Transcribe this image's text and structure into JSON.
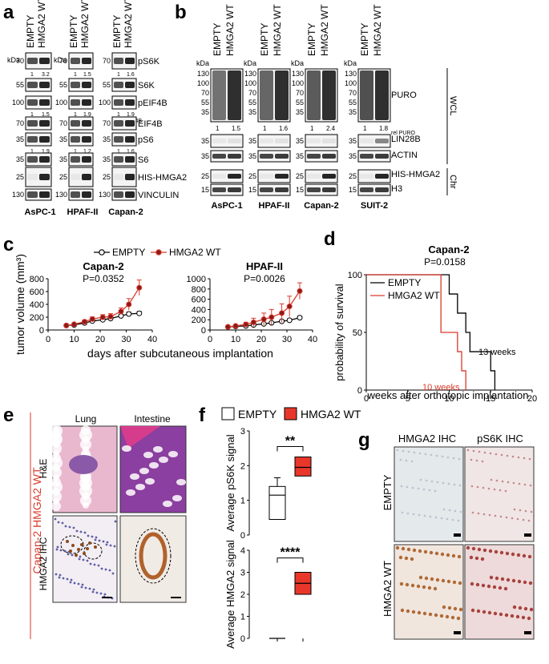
{
  "panels": {
    "a": "a",
    "b": "b",
    "c": "c",
    "d": "d",
    "e": "e",
    "f": "f",
    "g": "g"
  },
  "panel_a": {
    "columns": [
      "EMPTY",
      "HMGA2 WT"
    ],
    "kda_label": "kDa",
    "cell_lines": [
      "AsPC-1",
      "HPAF-II",
      "Capan-2"
    ],
    "rows": [
      {
        "label": "pS6K",
        "kda": "70",
        "kda2": "55",
        "quant": [
          [
            "1",
            "3.2"
          ],
          [
            "1",
            "1.5"
          ],
          [
            "1",
            "1.6"
          ]
        ],
        "rel": "rel pS6K"
      },
      {
        "label": "S6K",
        "kda": "55"
      },
      {
        "label": "pEIF4B",
        "kda": "100",
        "quant": [
          [
            "1",
            "1.5"
          ],
          [
            "1",
            "1.9"
          ],
          [
            "1",
            "1.9"
          ]
        ],
        "rel": "rel pEIF4B"
      },
      {
        "label": "EIF4B",
        "kda": "70"
      },
      {
        "label": "pS6",
        "kda": "35",
        "quant": [
          [
            "1",
            "1.9"
          ],
          [
            "1",
            "1.2"
          ],
          [
            "1",
            "1.6"
          ]
        ],
        "rel": "rel pS6"
      },
      {
        "label": "S6",
        "kda": "35"
      },
      {
        "label": "HIS-HMGA2",
        "kda": "25"
      },
      {
        "label": "VINCULIN",
        "kda": "130"
      }
    ]
  },
  "panel_b": {
    "columns": [
      "EMPTY",
      "HMGA2 WT"
    ],
    "kda_label": "kDa",
    "cell_lines": [
      "AsPC-1",
      "HPAF-II",
      "Capan-2",
      "SUIT-2"
    ],
    "puro_kda": [
      "130",
      "100",
      "70",
      "55",
      "35"
    ],
    "quant": [
      [
        "1",
        "1.5"
      ],
      [
        "1",
        "1.6"
      ],
      [
        "1",
        "2.4"
      ],
      [
        "1",
        "1.8"
      ]
    ],
    "rel": "rel PURO",
    "labels": [
      "PURO",
      "LIN28B",
      "ACTIN",
      "HIS-HMGA2",
      "H3"
    ],
    "kda_small": [
      "35",
      "35",
      "25",
      "15"
    ],
    "group_wcl": "WCL",
    "group_chr": "Chr"
  },
  "panel_c": {
    "legend": [
      {
        "name": "EMPTY",
        "color": "#000000",
        "fill": "#ffffff"
      },
      {
        "name": "HMGA2 WT",
        "color": "#d93a2b",
        "fill": "#8b1a1a"
      }
    ],
    "ylabel": "tumor volume (mm³)",
    "xlabel": "days after subcutaneous implantation"
  },
  "chart_data": [
    {
      "type": "line",
      "title": "Capan-2",
      "subtitle": "P=0.0352",
      "ylim": [
        0,
        800
      ],
      "xlim": [
        0,
        40
      ],
      "yticks": [
        "0",
        "200",
        "400",
        "600",
        "800"
      ],
      "xticks": [
        "0",
        "10",
        "20",
        "30",
        "40"
      ],
      "series": [
        {
          "name": "EMPTY",
          "x": [
            7,
            10,
            14,
            17,
            21,
            24,
            28,
            31,
            35
          ],
          "y": [
            70,
            80,
            110,
            140,
            160,
            180,
            220,
            250,
            260
          ],
          "err": [
            10,
            12,
            15,
            20,
            22,
            25,
            25,
            30,
            30
          ]
        },
        {
          "name": "HMGA2 WT",
          "x": [
            7,
            10,
            14,
            17,
            21,
            24,
            28,
            31,
            35
          ],
          "y": [
            70,
            90,
            130,
            170,
            200,
            210,
            290,
            400,
            660
          ],
          "err": [
            10,
            15,
            25,
            35,
            40,
            45,
            55,
            90,
            120
          ]
        }
      ]
    },
    {
      "type": "line",
      "title": "HPAF-II",
      "subtitle": "P=0.0026",
      "ylim": [
        0,
        1000
      ],
      "xlim": [
        0,
        40
      ],
      "yticks": [
        "0",
        "200",
        "400",
        "600",
        "800",
        "1000"
      ],
      "xticks": [
        "0",
        "10",
        "20",
        "30",
        "40"
      ],
      "series": [
        {
          "name": "EMPTY",
          "x": [
            7,
            10,
            14,
            17,
            21,
            24,
            28,
            31,
            35
          ],
          "y": [
            60,
            70,
            80,
            100,
            120,
            140,
            170,
            190,
            240
          ],
          "err": [
            10,
            10,
            12,
            15,
            18,
            20,
            25,
            25,
            30
          ]
        },
        {
          "name": "HMGA2 WT",
          "x": [
            7,
            10,
            14,
            17,
            21,
            24,
            28,
            31,
            35
          ],
          "y": [
            60,
            80,
            110,
            150,
            210,
            250,
            330,
            460,
            760
          ],
          "err": [
            10,
            20,
            40,
            80,
            120,
            150,
            180,
            200,
            160
          ]
        }
      ]
    },
    {
      "type": "line",
      "title": "Capan-2",
      "subtitle": "P=0.0158",
      "ylabel": "probability of survival",
      "xlabel": "weeks after orthotopic implantation",
      "ylim": [
        0,
        100
      ],
      "xlim": [
        0,
        20
      ],
      "yticks": [
        "0",
        "50",
        "100"
      ],
      "xticks": [
        "0",
        "5",
        "10",
        "15",
        "20"
      ],
      "series": [
        {
          "name": "EMPTY",
          "steps": [
            [
              0,
              100
            ],
            [
              10,
              100
            ],
            [
              10,
              83.3
            ],
            [
              11,
              83.3
            ],
            [
              11,
              66.7
            ],
            [
              12,
              66.7
            ],
            [
              12,
              50
            ],
            [
              12.5,
              50
            ],
            [
              12.5,
              33.3
            ],
            [
              15,
              33.3
            ],
            [
              15,
              16.7
            ],
            [
              15.5,
              16.7
            ],
            [
              15.5,
              0
            ]
          ]
        },
        {
          "name": "HMGA2 WT",
          "steps": [
            [
              0,
              100
            ],
            [
              9,
              100
            ],
            [
              9,
              50
            ],
            [
              11,
              50
            ],
            [
              11,
              33.3
            ],
            [
              11.5,
              33.3
            ],
            [
              11.5,
              16.7
            ],
            [
              12,
              16.7
            ],
            [
              12,
              0
            ]
          ]
        }
      ],
      "annotations": [
        "13 weeks",
        "10 weeks"
      ]
    },
    {
      "type": "box",
      "ylabel": "Average pS6K signal",
      "ylim": [
        0,
        3
      ],
      "yticks": [
        "0",
        "1",
        "2",
        "3"
      ],
      "series": [
        {
          "name": "EMPTY",
          "min": 0.45,
          "q1": 0.45,
          "median": 1.15,
          "q3": 1.4,
          "max": 1.65
        },
        {
          "name": "HMGA2 WT",
          "min": 1.7,
          "q1": 1.7,
          "median": 1.95,
          "q3": 2.25,
          "max": 2.25
        }
      ],
      "significance": "**"
    },
    {
      "type": "box",
      "ylabel": "Average HMGA2 signal",
      "ylim": [
        0,
        4
      ],
      "yticks": [
        "0",
        "1",
        "2",
        "3",
        "4"
      ],
      "series": [
        {
          "name": "EMPTY",
          "min": 0,
          "q1": 0,
          "median": 0,
          "q3": 0,
          "max": 0
        },
        {
          "name": "HMGA2 WT",
          "min": 2.0,
          "q1": 2.0,
          "median": 2.5,
          "q3": 3.0,
          "max": 3.0
        }
      ],
      "significance": "****"
    }
  ],
  "panel_f": {
    "legend": [
      {
        "name": "EMPTY",
        "fill": "#ffffff"
      },
      {
        "name": "HMGA2 WT",
        "fill": "#e8372a"
      }
    ]
  },
  "panel_e": {
    "cols": [
      "Lung",
      "Intestine"
    ],
    "rows": [
      "H&E",
      "HMGA2 IHC"
    ],
    "side_label": "Capan-2 HMGA2 WT"
  },
  "panel_g": {
    "cols": [
      "HMGA2 IHC",
      "pS6K IHC"
    ],
    "rows": [
      "EMPTY",
      "HMGA2 WT"
    ]
  },
  "colors": {
    "red": "#d93a2b",
    "dark_red": "#8b1a1a",
    "box_red": "#e8372a"
  }
}
